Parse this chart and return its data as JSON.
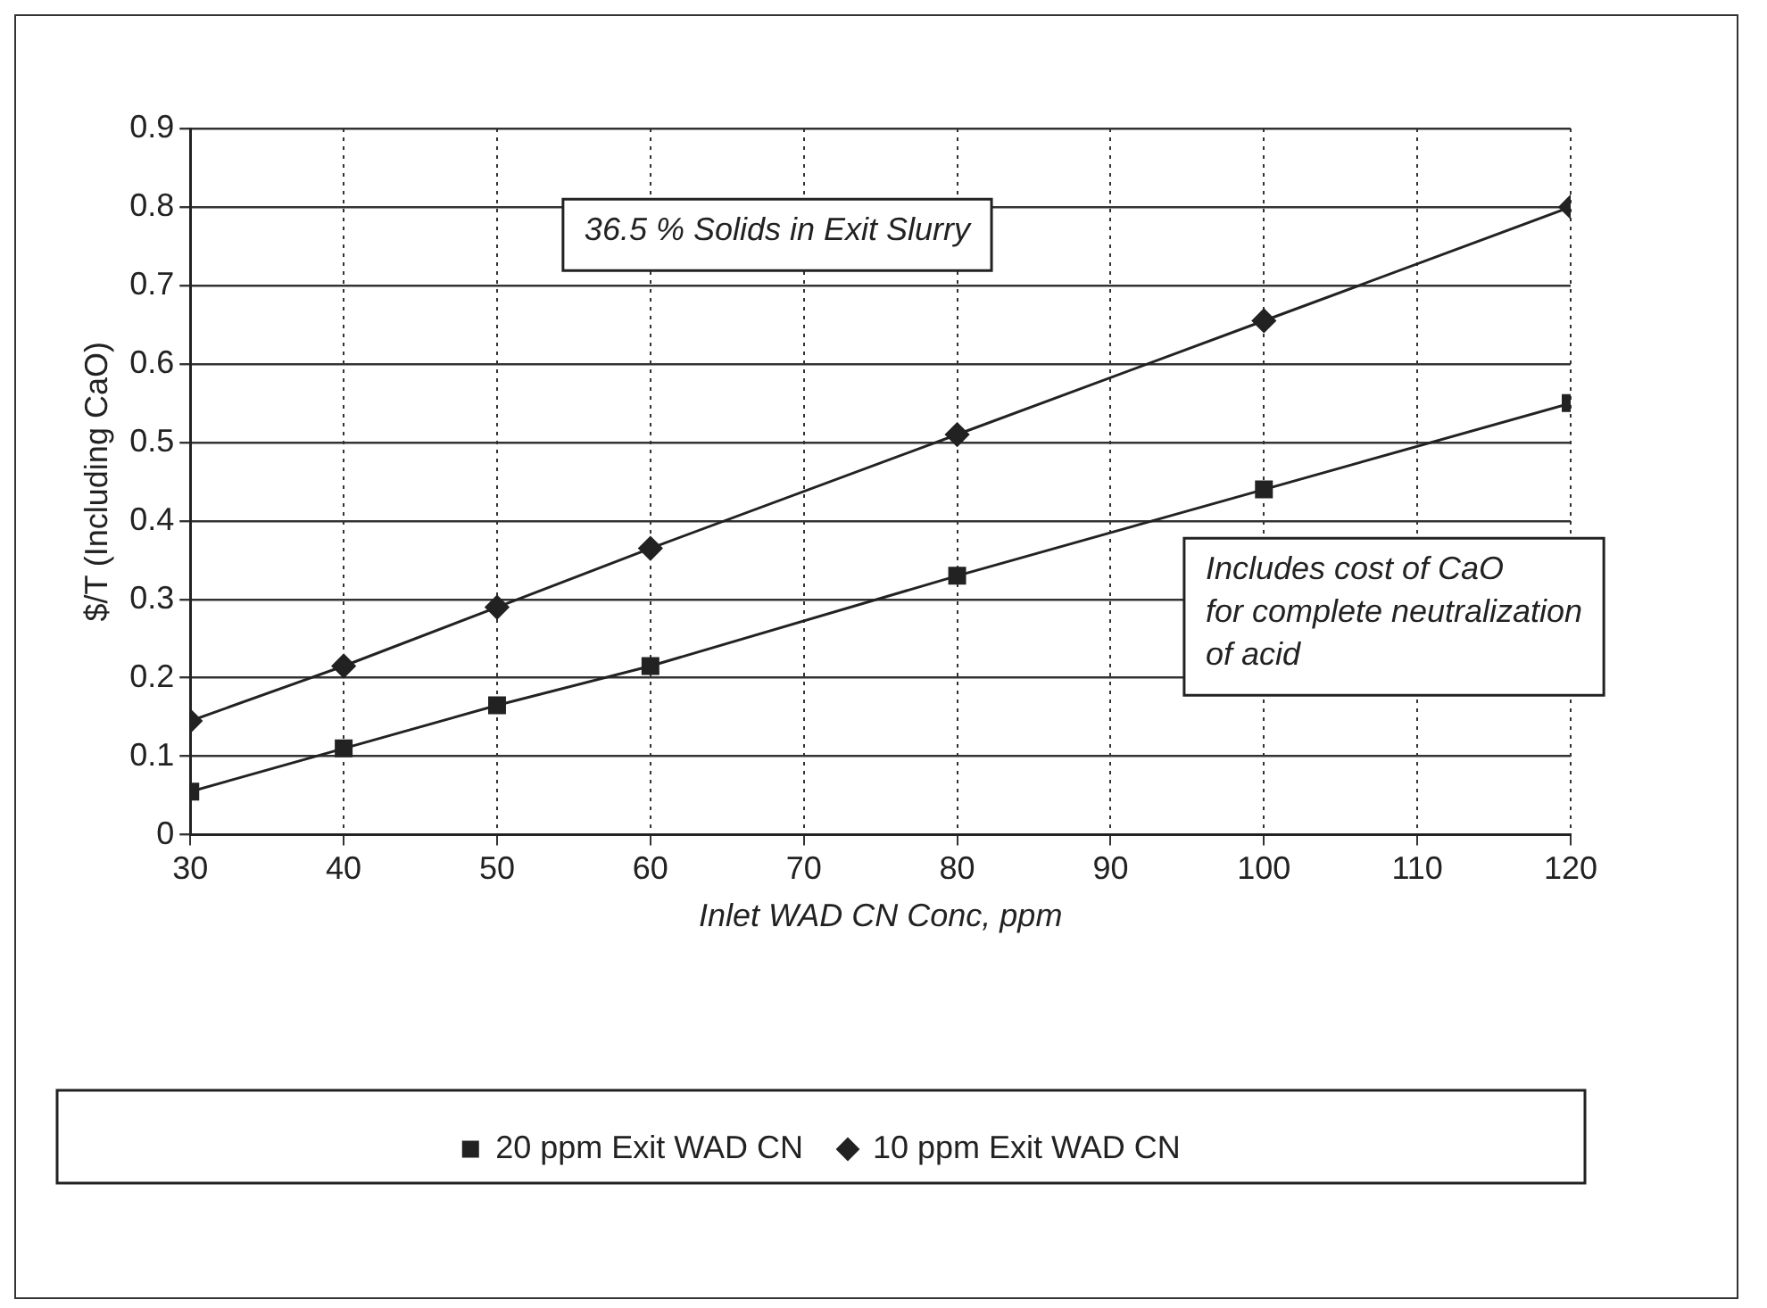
{
  "chart_data": {
    "type": "line",
    "xlabel": "Inlet WAD CN Conc, ppm",
    "ylabel": "$/T (Including CaO)",
    "x": [
      30,
      40,
      50,
      60,
      80,
      100,
      120
    ],
    "series": [
      {
        "name": "20 ppm Exit WAD CN",
        "color": "#222222",
        "marker": "square",
        "values": [
          0.055,
          0.11,
          0.165,
          0.215,
          0.33,
          0.44,
          0.55
        ]
      },
      {
        "name": "10 ppm Exit WAD CN",
        "color": "#222222",
        "marker": "diamond",
        "values": [
          0.145,
          0.215,
          0.29,
          0.365,
          0.51,
          0.655,
          0.8
        ]
      }
    ],
    "xlim": [
      30,
      120
    ],
    "xticks": [
      30,
      40,
      50,
      60,
      70,
      80,
      90,
      100,
      110,
      120
    ],
    "ylim": [
      0,
      0.9
    ],
    "yticks": [
      0,
      0.1,
      0.2,
      0.3,
      0.4,
      0.5,
      0.6,
      0.7,
      0.8,
      0.9
    ],
    "grid": true,
    "legend": "bottom",
    "line_style": "solid",
    "annotations": [
      "36.5 % Solids in Exit Slurry",
      "Includes cost of CaO\nfor complete neutralization\nof acid"
    ]
  }
}
